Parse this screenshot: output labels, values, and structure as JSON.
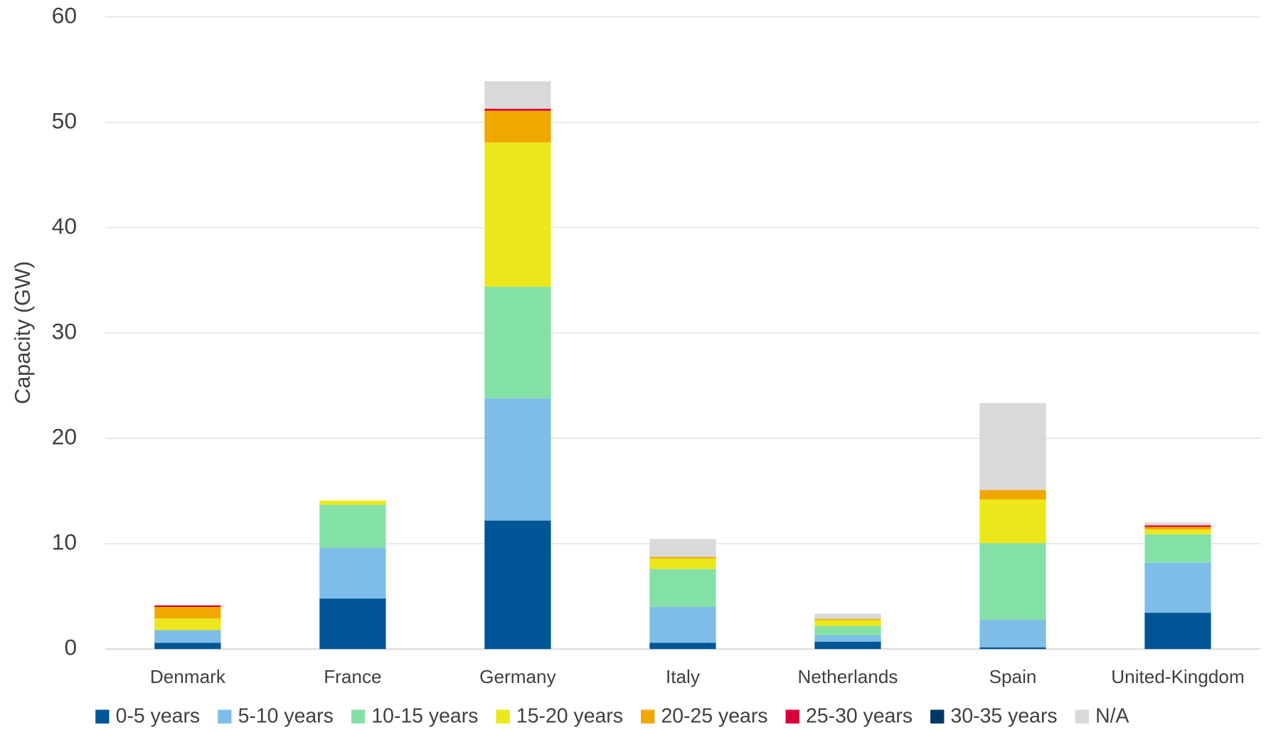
{
  "chart_data": {
    "type": "bar",
    "stacked": true,
    "y_label": "Capacity (GW)",
    "categories": [
      "Denmark",
      "France",
      "Germany",
      "Italy",
      "Netherlands",
      "Spain",
      "United-Kingdom"
    ],
    "series": [
      {
        "name": "0-5 years",
        "color": "#005596",
        "values": [
          0.6,
          4.8,
          12.2,
          0.6,
          0.7,
          0.15,
          3.45
        ]
      },
      {
        "name": "5-10 years",
        "color": "#7dbde8",
        "values": [
          1.2,
          4.8,
          11.6,
          3.4,
          0.6,
          2.6,
          4.75
        ]
      },
      {
        "name": "10-15 years",
        "color": "#84e1a6",
        "values": [
          0,
          4.1,
          10.6,
          3.6,
          0.9,
          7.3,
          2.7
        ]
      },
      {
        "name": "15-20 years",
        "color": "#ece71a",
        "values": [
          1.1,
          0.4,
          13.7,
          1.0,
          0.55,
          4.15,
          0.45
        ]
      },
      {
        "name": "20-25 years",
        "color": "#f0a800",
        "values": [
          1.1,
          0,
          3.0,
          0.15,
          0.1,
          0.9,
          0.25
        ]
      },
      {
        "name": "25-30 years",
        "color": "#d9003a",
        "values": [
          0.15,
          0,
          0.2,
          0,
          0,
          0,
          0.15
        ]
      },
      {
        "name": "30-35 years",
        "color": "#003865",
        "values": [
          0,
          0,
          0,
          0,
          0,
          0,
          0
        ]
      },
      {
        "name": "N/A",
        "color": "#d9d9d9",
        "values": [
          0,
          0,
          2.6,
          1.7,
          0.5,
          8.25,
          0.25
        ]
      }
    ],
    "ylim": [
      0,
      60
    ],
    "yticks": [
      0,
      10,
      20,
      30,
      40,
      50,
      60
    ],
    "grid": true,
    "legend": "bottom"
  }
}
